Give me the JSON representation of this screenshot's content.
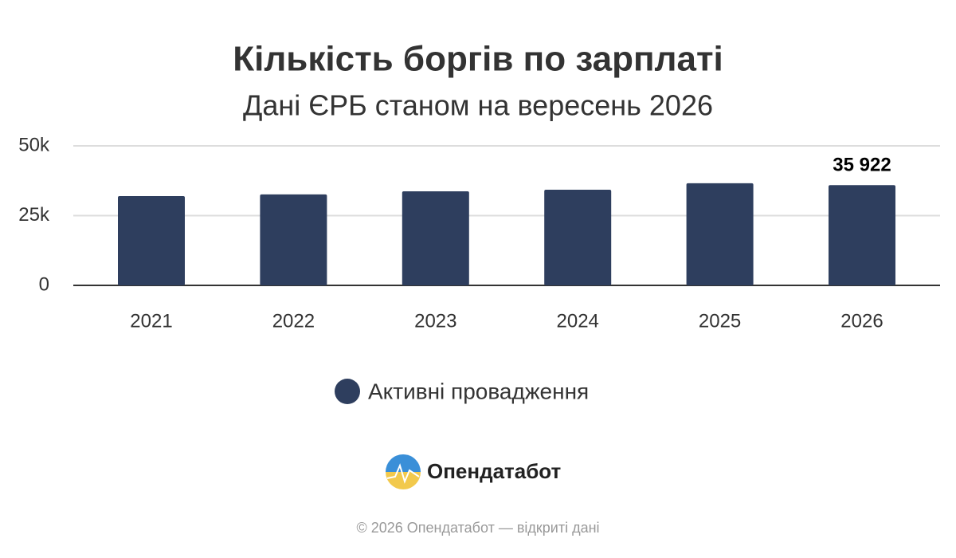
{
  "chart_data": {
    "type": "bar",
    "title": "Кількість боргів по зарплаті",
    "subtitle": "Дані ЄРБ станом на вересень 2026",
    "categories": [
      "2021",
      "2022",
      "2023",
      "2024",
      "2025",
      "2026"
    ],
    "series": [
      {
        "name": "Активні провадження",
        "color": "#2e3e5e",
        "values": [
          32000,
          32600,
          33700,
          34300,
          36600,
          35922
        ],
        "value_labels": [
          null,
          null,
          null,
          null,
          null,
          "35 922"
        ]
      }
    ],
    "ylim": [
      0,
      50000
    ],
    "yticks": [
      0,
      {
        "value": 25000,
        "label": "25k"
      },
      {
        "value": 50000,
        "label": "50k"
      }
    ],
    "grid": true,
    "legend": "bottom"
  },
  "logo": "Опендатабот",
  "footer": "© 2026 Опендатабот — відкриті дані"
}
